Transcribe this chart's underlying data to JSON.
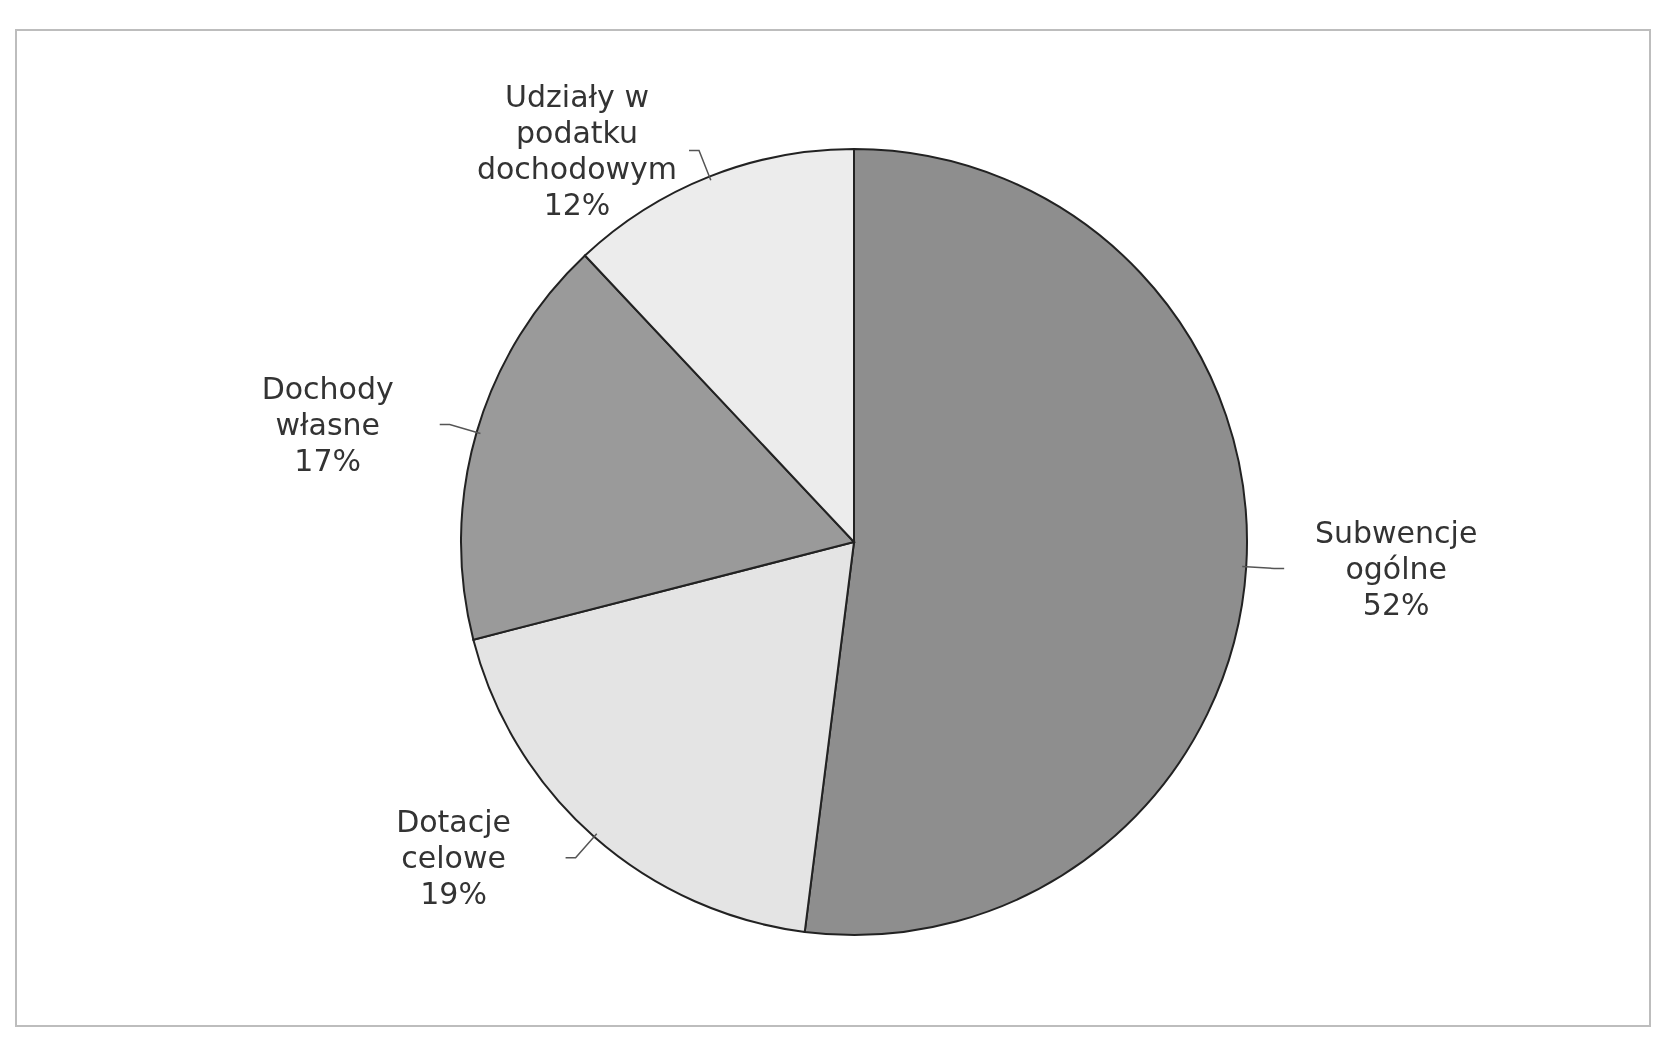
{
  "chart_data": {
    "type": "pie",
    "categories": [
      "Subwencje ogólne",
      "Dotacje celowe",
      "Dochody własne",
      "Udziały w podatku dochodowym"
    ],
    "values": [
      52,
      19,
      17,
      12
    ],
    "value_labels": [
      "52%",
      "19%",
      "17%",
      "12%"
    ],
    "colors": [
      "#8e8e8e",
      "#e4e4e4",
      "#9a9a9a",
      "#ececec"
    ]
  }
}
